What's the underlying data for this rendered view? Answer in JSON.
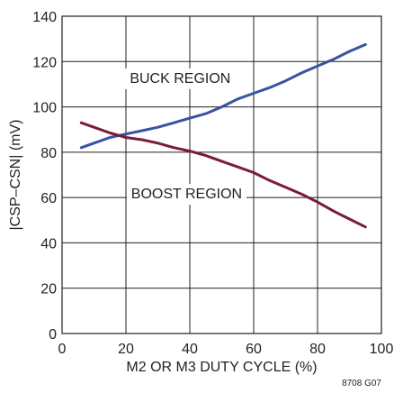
{
  "chart_data": {
    "type": "line",
    "xlabel": "M2 OR M3 DUTY CYCLE (%)",
    "ylabel": "|CSP–CSN| (mV)",
    "xlim": [
      0,
      100
    ],
    "ylim": [
      0,
      140
    ],
    "xticks": [
      0,
      20,
      40,
      60,
      80,
      100
    ],
    "yticks": [
      0,
      20,
      40,
      60,
      80,
      100,
      120,
      140
    ],
    "grid": true,
    "annotations": [
      "BUCK REGION",
      "BOOST REGION"
    ],
    "figure_id": "8708 G07",
    "series": [
      {
        "color": "#3a52a0",
        "x": [
          6,
          10,
          15,
          20,
          25,
          30,
          35,
          40,
          45,
          50,
          55,
          60,
          65,
          70,
          75,
          80,
          85,
          90,
          95
        ],
        "y": [
          82,
          84,
          86.5,
          88,
          89.5,
          91,
          93,
          95,
          97,
          100,
          103.5,
          106,
          108.5,
          111.5,
          115,
          118,
          121,
          124.5,
          127.5
        ]
      },
      {
        "color": "#7b1a3a",
        "x": [
          6,
          10,
          15,
          20,
          25,
          30,
          35,
          40,
          45,
          50,
          55,
          60,
          65,
          70,
          75,
          80,
          85,
          90,
          95
        ],
        "y": [
          93,
          91,
          88.5,
          86.5,
          85.5,
          84,
          82,
          80.5,
          78.5,
          76,
          73.5,
          71,
          67.5,
          64.5,
          61.5,
          58,
          54,
          50.5,
          47
        ]
      }
    ]
  }
}
